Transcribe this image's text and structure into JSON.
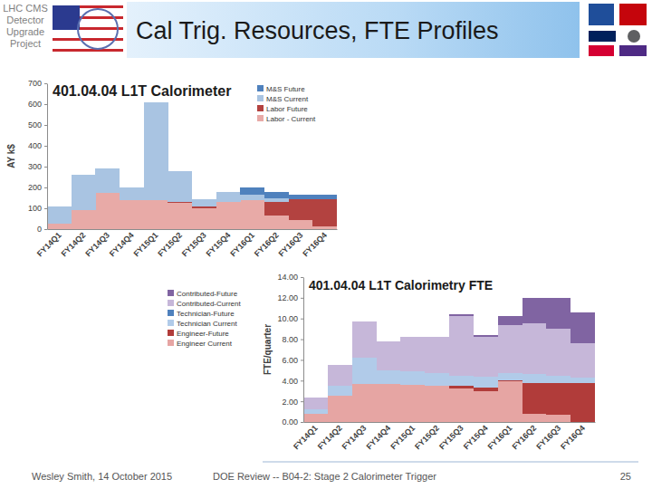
{
  "slide": {
    "header": [
      "LHC CMS",
      "Detector",
      "Upgrade",
      "Project"
    ],
    "title": "Cal Trig. Resources, FTE Profiles",
    "footer_left": "Wesley Smith, 14 October 2015",
    "footer_center": "DOE Review -- B04-2: Stage 2 Calorimeter Trigger",
    "page": "25"
  },
  "chart_data": [
    {
      "type": "bar",
      "title": "401.04.04 L1T Calorimeter",
      "ylabel": "AY k$",
      "categories": [
        "FY14Q1",
        "FY14Q2",
        "FY14Q3",
        "FY14Q4",
        "FY15Q1",
        "FY15Q2",
        "FY15Q3",
        "FY15Q4",
        "FY16Q1",
        "FY16Q2",
        "FY16Q3",
        "FY16Q4"
      ],
      "series": [
        {
          "name": "Labor - Current",
          "color": "#e8aaa7",
          "values": [
            25,
            90,
            175,
            140,
            140,
            125,
            100,
            130,
            140,
            65,
            45,
            15
          ]
        },
        {
          "name": "Labor Future",
          "color": "#b34240",
          "values": [
            0,
            0,
            0,
            0,
            0,
            5,
            10,
            0,
            0,
            65,
            100,
            130
          ]
        },
        {
          "name": "M&S Current",
          "color": "#a9c4e2",
          "values": [
            85,
            170,
            115,
            60,
            470,
            150,
            35,
            50,
            25,
            20,
            0,
            0
          ]
        },
        {
          "name": "M&S Future",
          "color": "#4f81bd",
          "values": [
            0,
            0,
            0,
            0,
            0,
            0,
            0,
            0,
            35,
            30,
            20,
            20
          ]
        }
      ],
      "ylim": [
        0,
        700
      ],
      "yticks": [
        0,
        100,
        200,
        300,
        400,
        500,
        600,
        700
      ],
      "stacked": true,
      "grid": false,
      "legend": "top-right"
    },
    {
      "type": "bar",
      "title": "401.04.04 L1T Calorimetry FTE",
      "ylabel": "FTE/quarter",
      "categories": [
        "FY14Q1",
        "FY14Q2",
        "FY14Q3",
        "FY14Q4",
        "FY15Q1",
        "FY15Q2",
        "FY15Q3",
        "FY15Q4",
        "FY16Q1",
        "FY16Q2",
        "FY16Q3",
        "FY16Q4"
      ],
      "series": [
        {
          "name": "Engineer Current",
          "color": "#e6a5a3",
          "values": [
            0.8,
            2.5,
            3.7,
            3.7,
            3.6,
            3.5,
            3.2,
            3.0,
            3.9,
            0.8,
            0.7,
            0
          ]
        },
        {
          "name": "Engineer-Future",
          "color": "#b13c3a",
          "values": [
            0,
            0,
            0,
            0,
            0,
            0,
            0.3,
            0.3,
            0.1,
            3.0,
            3.1,
            3.8
          ]
        },
        {
          "name": "Technician Current",
          "color": "#b1cbe9",
          "values": [
            0.4,
            1.0,
            2.5,
            1.3,
            1.3,
            1.2,
            1.0,
            1.1,
            0.7,
            0.8,
            0.7,
            0.5
          ]
        },
        {
          "name": "Technician-Future",
          "color": "#4f81bd",
          "values": [
            0,
            0,
            0,
            0,
            0,
            0,
            0,
            0,
            0,
            0,
            0,
            0
          ]
        },
        {
          "name": "Contributed-Current",
          "color": "#c6b7d9",
          "values": [
            1.2,
            2.0,
            3.5,
            2.8,
            3.3,
            3.5,
            5.7,
            3.8,
            4.7,
            4.9,
            4.5,
            3.3
          ]
        },
        {
          "name": "Contributed-Future",
          "color": "#8064a2",
          "values": [
            0,
            0,
            0,
            0,
            0,
            0,
            0.2,
            0.2,
            0.8,
            2.5,
            3.0,
            3.0
          ]
        }
      ],
      "ylim": [
        0,
        14
      ],
      "yticks": [
        {
          "value": 0,
          "label": "0.00"
        },
        {
          "value": 2,
          "label": "2.00"
        },
        {
          "value": 4,
          "label": "4.00"
        },
        {
          "value": 6,
          "label": "6.00"
        },
        {
          "value": 8,
          "label": "8.00"
        },
        {
          "value": 10,
          "label": "10.00"
        },
        {
          "value": 12,
          "label": "12.00"
        },
        {
          "value": 14,
          "label": "14.00"
        }
      ],
      "stacked": true,
      "grid": false,
      "legend": "left"
    }
  ]
}
